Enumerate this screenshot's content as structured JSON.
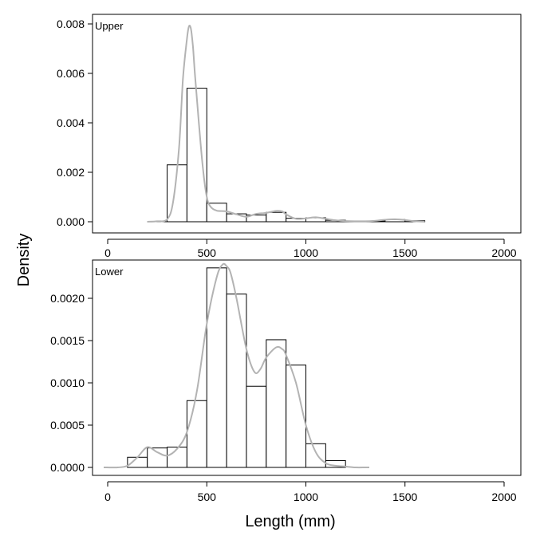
{
  "chart_data": [
    {
      "type": "histogram",
      "panel_label": "Upper",
      "xlim": [
        0,
        2000
      ],
      "ylim": [
        0,
        0.008
      ],
      "xticks": [
        0,
        500,
        1000,
        1500,
        2000
      ],
      "yticks": [
        0.0,
        0.002,
        0.004,
        0.006,
        0.008
      ],
      "ytick_labels": [
        "0.000",
        "0.002",
        "0.004",
        "0.006",
        "0.008"
      ],
      "bin_width": 100,
      "bins": [
        {
          "start": 200,
          "density": 0.0
        },
        {
          "start": 300,
          "density": 0.0023
        },
        {
          "start": 400,
          "density": 0.0054
        },
        {
          "start": 500,
          "density": 0.00075
        },
        {
          "start": 600,
          "density": 0.00032
        },
        {
          "start": 700,
          "density": 0.00027
        },
        {
          "start": 800,
          "density": 0.00038
        },
        {
          "start": 900,
          "density": 0.00014
        },
        {
          "start": 1000,
          "density": 0.00016
        },
        {
          "start": 1100,
          "density": 6e-05
        },
        {
          "start": 1200,
          "density": 3e-05
        },
        {
          "start": 1300,
          "density": 3e-05
        },
        {
          "start": 1400,
          "density": 9e-05
        },
        {
          "start": 1500,
          "density": 4e-05
        }
      ],
      "density_curve": {
        "x": [
          200,
          250,
          300,
          330,
          360,
          380,
          400,
          410,
          420,
          430,
          440,
          460,
          480,
          500,
          520,
          550,
          600,
          650,
          700,
          750,
          800,
          850,
          880,
          900,
          950,
          1000,
          1050,
          1100,
          1150,
          1200,
          1300,
          1350,
          1400,
          1450,
          1500,
          1550,
          1600
        ],
        "y": [
          0.0,
          2e-05,
          0.0001,
          0.0008,
          0.003,
          0.0058,
          0.0074,
          0.0079,
          0.0078,
          0.0071,
          0.006,
          0.004,
          0.0022,
          0.001,
          0.0006,
          0.00045,
          0.00042,
          0.0003,
          0.0002,
          0.00032,
          0.00036,
          0.00044,
          0.00042,
          0.0003,
          0.00012,
          0.00014,
          0.00018,
          0.00012,
          6e-05,
          3e-05,
          2e-05,
          4e-05,
          8e-05,
          0.0001,
          7e-05,
          2e-05,
          0.0
        ]
      }
    },
    {
      "type": "histogram",
      "panel_label": "Lower",
      "xlim": [
        0,
        2000
      ],
      "ylim": [
        0,
        0.0024
      ],
      "xticks": [
        0,
        500,
        1000,
        1500,
        2000
      ],
      "yticks": [
        0.0,
        0.0005,
        0.001,
        0.0015,
        0.002
      ],
      "ytick_labels": [
        "0.0000",
        "0.0005",
        "0.0010",
        "0.0015",
        "0.0020"
      ],
      "bin_width": 100,
      "bins": [
        {
          "start": 100,
          "density": 0.00012
        },
        {
          "start": 200,
          "density": 0.00023
        },
        {
          "start": 300,
          "density": 0.00024
        },
        {
          "start": 400,
          "density": 0.00079
        },
        {
          "start": 500,
          "density": 0.00236
        },
        {
          "start": 600,
          "density": 0.00205
        },
        {
          "start": 700,
          "density": 0.00096
        },
        {
          "start": 800,
          "density": 0.00151
        },
        {
          "start": 900,
          "density": 0.00121
        },
        {
          "start": 1000,
          "density": 0.00028
        },
        {
          "start": 1100,
          "density": 8e-05
        }
      ],
      "density_curve": {
        "x": [
          -20,
          50,
          100,
          150,
          200,
          250,
          300,
          350,
          400,
          450,
          500,
          550,
          580,
          600,
          620,
          650,
          700,
          740,
          770,
          800,
          850,
          880,
          900,
          950,
          1000,
          1050,
          1100,
          1150,
          1200,
          1250,
          1300,
          1320
        ],
        "y": [
          0.0,
          0.0,
          2e-05,
          0.00012,
          0.00024,
          0.00018,
          0.00014,
          0.00022,
          0.00042,
          0.0009,
          0.0017,
          0.00225,
          0.0024,
          0.00238,
          0.0023,
          0.002,
          0.0014,
          0.00113,
          0.00116,
          0.0013,
          0.00142,
          0.0014,
          0.00133,
          0.001,
          0.0005,
          0.00018,
          5e-05,
          2e-05,
          1e-05,
          0.0,
          0.0,
          0.0
        ]
      }
    }
  ],
  "axis_titles": {
    "x": "Length (mm)",
    "y": "Density"
  },
  "colors": {
    "density_line": "#b3b3b3",
    "bar_fill": "#ffffff",
    "bar_stroke": "#000000"
  }
}
